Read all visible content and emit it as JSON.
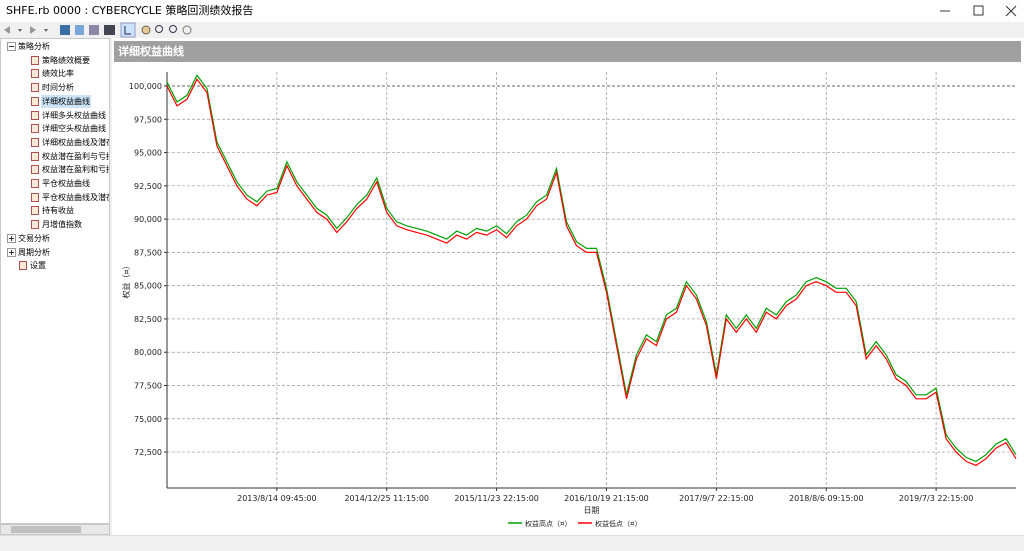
{
  "window": {
    "title": "SHFE.rb 0000 : CYBERCYCLE 策略回测绩效报告"
  },
  "tree": [
    {
      "label": "策略分析",
      "children": [
        "策略绩效概要",
        "绩效比率",
        "时间分析",
        "详细权益曲线",
        "详细多头权益曲线",
        "详细空头权益曲线",
        "详细权益曲线及潜在",
        "权益潜在盈利与亏损",
        "权益潜在盈利和亏损",
        "平仓权益曲线",
        "平仓权益曲线及潜在",
        "持有收益",
        "月增值指数"
      ]
    },
    {
      "label": "交易分析"
    },
    {
      "label": "周期分析"
    },
    {
      "label": "设置"
    }
  ],
  "chart_data": {
    "type": "line",
    "title": "详细权益曲线",
    "xlabel": "日期",
    "ylabel": "权益（¤）",
    "grid": true,
    "x": [
      0,
      1,
      2,
      3,
      4,
      5,
      6,
      7,
      8,
      9,
      10,
      11,
      12,
      13,
      14,
      15,
      16,
      17,
      18,
      19,
      20,
      21,
      22,
      23,
      24,
      25,
      26,
      27,
      28,
      29,
      30,
      31,
      32,
      33,
      34,
      35,
      36,
      37,
      38,
      39,
      40,
      41,
      42,
      43,
      44,
      45,
      46,
      47,
      48,
      49,
      50,
      51,
      52,
      53,
      54,
      55,
      56,
      57,
      58,
      59,
      60,
      61,
      62,
      63,
      64,
      65,
      66,
      67,
      68,
      69,
      70,
      71,
      72,
      73,
      74,
      75,
      76,
      77,
      78,
      79,
      80,
      81,
      82,
      83,
      84,
      85
    ],
    "xlim": [
      0,
      85
    ],
    "xticks": [
      {
        "value": 11,
        "label": "2013/8/14 09:45:00"
      },
      {
        "value": 22,
        "label": "2014/12/25 11:15:00"
      },
      {
        "value": 33,
        "label": "2015/11/23 22:15:00"
      },
      {
        "value": 44,
        "label": "2016/10/19 21:15:00"
      },
      {
        "value": 55,
        "label": "2017/9/7 22:15:00"
      },
      {
        "value": 66,
        "label": "2018/8/6 09:15:00"
      },
      {
        "value": 77,
        "label": "2019/7/3 22:15:00"
      }
    ],
    "ylim": [
      69800,
      101050
    ],
    "yticks": [
      {
        "value": 72500,
        "label": "72,500"
      },
      {
        "value": 75000,
        "label": "75,000"
      },
      {
        "value": 77500,
        "label": "77,500"
      },
      {
        "value": 80000,
        "label": "80,000"
      },
      {
        "value": 82500,
        "label": "82,500"
      },
      {
        "value": 85000,
        "label": "85,000"
      },
      {
        "value": 87500,
        "label": "87,500"
      },
      {
        "value": 90000,
        "label": "90,000"
      },
      {
        "value": 92500,
        "label": "92,500"
      },
      {
        "value": 95000,
        "label": "95,000"
      },
      {
        "value": 97500,
        "label": "97,500"
      },
      {
        "value": 100000,
        "label": "100,000"
      }
    ],
    "series": [
      {
        "name": "权益高点（¤）",
        "color": "#00a000",
        "values": [
          100300,
          98800,
          99300,
          100800,
          99800,
          95800,
          94300,
          92800,
          91800,
          91300,
          92100,
          92300,
          94300,
          92800,
          91800,
          90800,
          90300,
          89300,
          90100,
          91100,
          91800,
          93100,
          90800,
          89800,
          89500,
          89300,
          89100,
          88800,
          88500,
          89100,
          88800,
          89300,
          89100,
          89500,
          88900,
          89800,
          90300,
          91300,
          91800,
          93800,
          89800,
          88300,
          87800,
          87800,
          84800,
          80800,
          76800,
          79800,
          81300,
          80800,
          82800,
          83300,
          85300,
          84300,
          82300,
          78300,
          82800,
          81800,
          82800,
          81800,
          83300,
          82800,
          83800,
          84300,
          85300,
          85600,
          85300,
          84800,
          84800,
          83800,
          79800,
          80800,
          79800,
          78300,
          77800,
          76800,
          76800,
          77300,
          73800,
          72800,
          72100,
          71800,
          72300,
          73100,
          73500,
          72300
        ]
      },
      {
        "name": "权益低点（¤）",
        "color": "#ff0000",
        "values": [
          100000,
          98500,
          99000,
          100500,
          99500,
          95500,
          94000,
          92500,
          91500,
          91000,
          91800,
          92000,
          94000,
          92500,
          91500,
          90500,
          90000,
          89000,
          89800,
          90800,
          91500,
          92800,
          90500,
          89500,
          89200,
          89000,
          88800,
          88500,
          88200,
          88800,
          88500,
          89000,
          88800,
          89200,
          88600,
          89500,
          90000,
          91000,
          91500,
          93500,
          89500,
          88000,
          87500,
          87500,
          84500,
          80500,
          76500,
          79500,
          81000,
          80500,
          82500,
          83000,
          85000,
          84000,
          82000,
          78000,
          82500,
          81500,
          82500,
          81500,
          83000,
          82500,
          83500,
          84000,
          85000,
          85300,
          85000,
          84500,
          84500,
          83500,
          79500,
          80500,
          79500,
          78000,
          77500,
          76500,
          76500,
          77000,
          73500,
          72500,
          71800,
          71500,
          72000,
          72800,
          73200,
          72000
        ]
      }
    ]
  }
}
